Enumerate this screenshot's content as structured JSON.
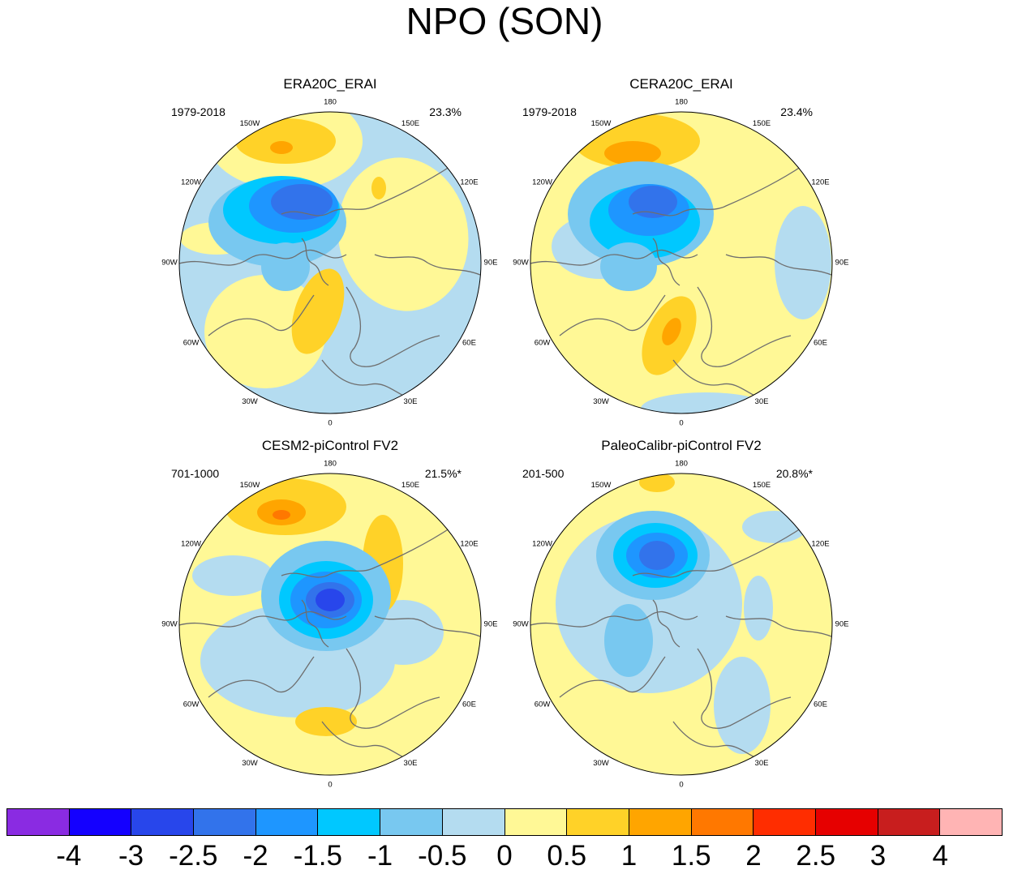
{
  "title": "NPO (SON)",
  "panels": [
    {
      "title": "ERA20C_ERAI",
      "period": "1979-2018",
      "variance": "23.3%"
    },
    {
      "title": "CERA20C_ERAI",
      "period": "1979-2018",
      "variance": "23.4%"
    },
    {
      "title": "CESM2-piControl FV2",
      "period": "701-1000",
      "variance": "21.5%*"
    },
    {
      "title": "PaleoCalibr-piControl FV2",
      "period": "201-500",
      "variance": "20.8%*"
    }
  ],
  "longitude_labels": [
    "180",
    "150E",
    "120E",
    "90E",
    "60E",
    "30E",
    "0",
    "30W",
    "60W",
    "90W",
    "120W",
    "150W"
  ],
  "colorbar": {
    "colors": [
      "#8a2be2",
      "#1400ff",
      "#2846eb",
      "#3273eb",
      "#1e96ff",
      "#00c8ff",
      "#78c8f0",
      "#b4dcf0",
      "#fff896",
      "#ffd228",
      "#ffa500",
      "#ff7800",
      "#ff2d00",
      "#e60000",
      "#c81e1e",
      "#ffb4b4"
    ],
    "labels": [
      "-4",
      "-3",
      "-2.5",
      "-2",
      "-1.5",
      "-1",
      "-0.5",
      "0",
      "0.5",
      "1",
      "1.5",
      "2",
      "2.5",
      "3",
      "4"
    ]
  }
}
